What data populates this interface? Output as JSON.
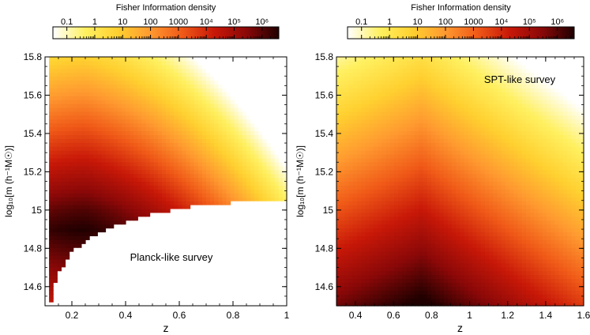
{
  "colorbar": {
    "label": "Fisher Information density",
    "tick_labels": [
      "0.1",
      "1",
      "10",
      "100",
      "1000",
      "10⁴",
      "10⁵",
      "10⁶"
    ],
    "tick_exponents": [
      -1,
      0,
      1,
      2,
      3,
      4,
      5,
      6
    ],
    "range_log10": [
      -1.5,
      6.6
    ],
    "scale": "log",
    "colormap": [
      "#ffffff",
      "#fff060",
      "#ffd030",
      "#ff9a30",
      "#f05a18",
      "#c81808",
      "#8a0808",
      "#200000"
    ]
  },
  "chart_data": [
    {
      "type": "heatmap",
      "annotation": "Planck-like survey",
      "xlabel": "z",
      "ylabel": "log₁₀[m (h⁻¹M☉)]",
      "xlim": [
        0.1,
        1.0
      ],
      "ylim": [
        14.5,
        15.8
      ],
      "x_ticks": [
        0.2,
        0.4,
        0.6,
        0.8,
        1.0
      ],
      "x_tick_labels": [
        "0.2",
        "0.4",
        "0.6",
        "0.8",
        "1"
      ],
      "y_ticks": [
        14.6,
        14.8,
        15.0,
        15.2,
        15.4,
        15.6,
        15.8
      ],
      "y_tick_labels": [
        "14.6",
        "14.8",
        "15",
        "15.2",
        "15.4",
        "15.6",
        "15.8"
      ],
      "detection_threshold": {
        "z": [
          0.12,
          0.13,
          0.15,
          0.2,
          0.25,
          0.3,
          0.4,
          0.5,
          0.6,
          0.7,
          0.8,
          0.9,
          1.0
        ],
        "log10_m_min": [
          14.5,
          14.6,
          14.67,
          14.78,
          14.84,
          14.88,
          14.94,
          14.98,
          15.01,
          15.03,
          15.04,
          15.05,
          15.055
        ]
      },
      "peak": {
        "z": 0.25,
        "log10_m": 14.9
      }
    },
    {
      "type": "heatmap",
      "annotation": "SPT-like survey",
      "xlabel": "z",
      "ylabel": "log₁₀[m (h⁻¹M☉)]",
      "xlim": [
        0.3,
        1.6
      ],
      "ylim": [
        14.5,
        15.8
      ],
      "x_ticks": [
        0.4,
        0.6,
        0.8,
        1.0,
        1.2,
        1.4,
        1.6
      ],
      "x_tick_labels": [
        "0.4",
        "0.6",
        "0.8",
        "1",
        "1.2",
        "1.4",
        "1.6"
      ],
      "y_ticks": [
        14.6,
        14.8,
        15.0,
        15.2,
        15.4,
        15.6,
        15.8
      ],
      "y_tick_labels": [
        "14.6",
        "14.8",
        "15",
        "15.2",
        "15.4",
        "15.6",
        "15.8"
      ],
      "peak": {
        "z": 0.75,
        "log10_m": 14.55
      }
    }
  ]
}
